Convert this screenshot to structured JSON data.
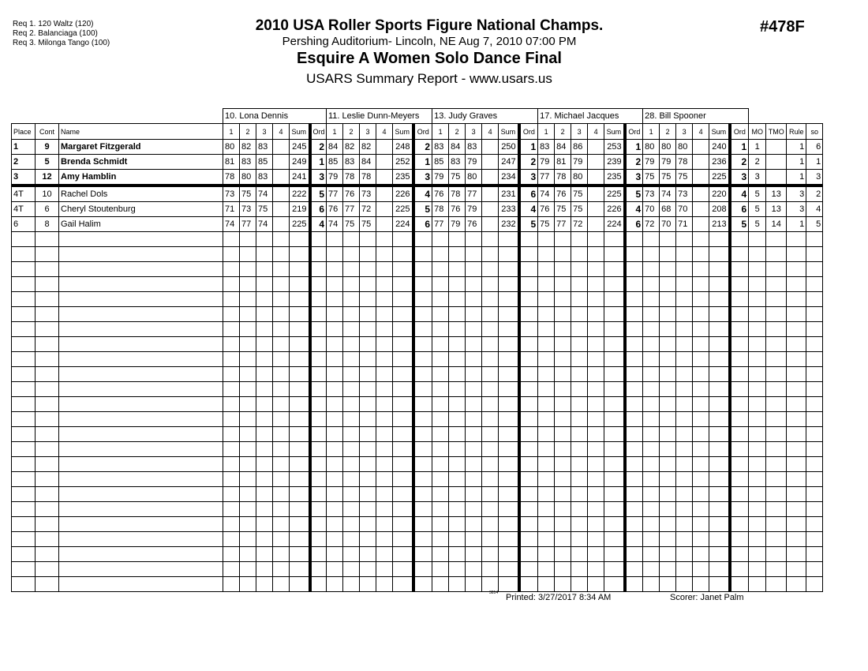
{
  "requirements": [
    "Req  1.  120 Waltz (120)",
    "Req  2.  Balanciaga (100)",
    "Req  3.  Milonga Tango (100)"
  ],
  "header": {
    "title": "2010 USA Roller Sports Figure National Champs.",
    "venue": "Pershing Auditorium- Lincoln, NE  Aug 7, 2010  07:00 PM",
    "event": "Esquire A Women Solo Dance Final",
    "report": "USARS Summary Report - www.usars.us",
    "code": "#478F"
  },
  "judges": [
    "10.  Lona Dennis",
    "11.  Leslie Dunn-Meyers",
    "13.  Judy Graves",
    "17.  Michael Jacques",
    "28.  Bill Spooner"
  ],
  "columns": {
    "place": "Place",
    "cont": "Cont",
    "name": "Name",
    "scores": [
      "1",
      "2",
      "3",
      "4"
    ],
    "sum": "Sum",
    "ord": "Ord",
    "mo": "MO",
    "tmo": "TMO",
    "rule": "Rule",
    "so": "so"
  },
  "rows": [
    {
      "place": "1",
      "cont": "9",
      "name": "Margaret Fitzgerald",
      "judges": [
        [
          [
            "80",
            "82",
            "83",
            ""
          ],
          "245",
          "2"
        ],
        [
          [
            "84",
            "82",
            "82",
            ""
          ],
          "248",
          "2"
        ],
        [
          [
            "83",
            "84",
            "83",
            ""
          ],
          "250",
          "1"
        ],
        [
          [
            "83",
            "84",
            "86",
            ""
          ],
          "253",
          "1"
        ],
        [
          [
            "80",
            "80",
            "80",
            ""
          ],
          "240",
          "1"
        ]
      ],
      "mo": "1",
      "tmo": "",
      "rule": "1",
      "so": "6"
    },
    {
      "place": "2",
      "cont": "5",
      "name": "Brenda Schmidt",
      "judges": [
        [
          [
            "81",
            "83",
            "85",
            ""
          ],
          "249",
          "1"
        ],
        [
          [
            "85",
            "83",
            "84",
            ""
          ],
          "252",
          "1"
        ],
        [
          [
            "85",
            "83",
            "79",
            ""
          ],
          "247",
          "2"
        ],
        [
          [
            "79",
            "81",
            "79",
            ""
          ],
          "239",
          "2"
        ],
        [
          [
            "79",
            "79",
            "78",
            ""
          ],
          "236",
          "2"
        ]
      ],
      "mo": "2",
      "tmo": "",
      "rule": "1",
      "so": "1"
    },
    {
      "place": "3",
      "cont": "12",
      "name": "Amy Hamblin",
      "judges": [
        [
          [
            "78",
            "80",
            "83",
            ""
          ],
          "241",
          "3"
        ],
        [
          [
            "79",
            "78",
            "78",
            ""
          ],
          "235",
          "3"
        ],
        [
          [
            "79",
            "75",
            "80",
            ""
          ],
          "234",
          "3"
        ],
        [
          [
            "77",
            "78",
            "80",
            ""
          ],
          "235",
          "3"
        ],
        [
          [
            "75",
            "75",
            "75",
            ""
          ],
          "225",
          "3"
        ]
      ],
      "mo": "3",
      "tmo": "",
      "rule": "1",
      "so": "3"
    },
    {
      "place": "4T",
      "cont": "10",
      "name": "Rachel Dols",
      "judges": [
        [
          [
            "73",
            "75",
            "74",
            ""
          ],
          "222",
          "5"
        ],
        [
          [
            "77",
            "76",
            "73",
            ""
          ],
          "226",
          "4"
        ],
        [
          [
            "76",
            "78",
            "77",
            ""
          ],
          "231",
          "6"
        ],
        [
          [
            "74",
            "76",
            "75",
            ""
          ],
          "225",
          "5"
        ],
        [
          [
            "73",
            "74",
            "73",
            ""
          ],
          "220",
          "4"
        ]
      ],
      "mo": "5",
      "tmo": "13",
      "rule": "3",
      "so": "2"
    },
    {
      "place": "4T",
      "cont": "6",
      "name": "Cheryl Stoutenburg",
      "judges": [
        [
          [
            "71",
            "73",
            "75",
            ""
          ],
          "219",
          "6"
        ],
        [
          [
            "76",
            "77",
            "72",
            ""
          ],
          "225",
          "5"
        ],
        [
          [
            "78",
            "76",
            "79",
            ""
          ],
          "233",
          "4"
        ],
        [
          [
            "76",
            "75",
            "75",
            ""
          ],
          "226",
          "4"
        ],
        [
          [
            "70",
            "68",
            "70",
            ""
          ],
          "208",
          "6"
        ]
      ],
      "mo": "5",
      "tmo": "13",
      "rule": "3",
      "so": "4"
    },
    {
      "place": "6",
      "cont": "8",
      "name": "Gail Halim",
      "judges": [
        [
          [
            "74",
            "77",
            "74",
            ""
          ],
          "225",
          "4"
        ],
        [
          [
            "74",
            "75",
            "75",
            ""
          ],
          "224",
          "6"
        ],
        [
          [
            "77",
            "79",
            "76",
            ""
          ],
          "232",
          "5"
        ],
        [
          [
            "75",
            "77",
            "72",
            ""
          ],
          "224",
          "6"
        ],
        [
          [
            "72",
            "70",
            "71",
            ""
          ],
          "213",
          "5"
        ]
      ],
      "mo": "5",
      "tmo": "14",
      "rule": "1",
      "so": "5"
    }
  ],
  "footer": {
    "mark": "3814",
    "printed": "Printed:  3/27/2017  8:34 AM",
    "scorer": "Scorer:    Janet Palm"
  }
}
